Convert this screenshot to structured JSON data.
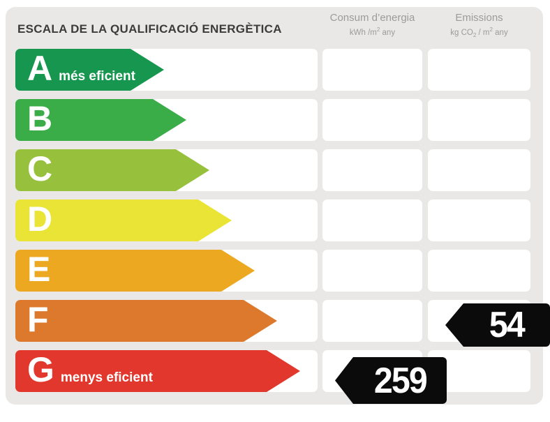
{
  "label": {
    "title": "ESCALA DE LA QUALIFICACIÓ ENERGÈTICA",
    "columns": {
      "consumption": {
        "title": "Consum d’energia",
        "unit": {
          "pre": "kWh /m",
          "sup": "2",
          "post": " any"
        }
      },
      "emissions": {
        "title": "Emissions",
        "unit": {
          "pre": "kg CO",
          "sub": "2",
          "mid": " / m",
          "sup": "2",
          "post": " any"
        }
      }
    },
    "scale": {
      "rows": [
        {
          "letter": "A",
          "label": "més eficient",
          "color": "#17964F"
        },
        {
          "letter": "B",
          "label": "",
          "color": "#3AAD49"
        },
        {
          "letter": "C",
          "label": "",
          "color": "#97C13D"
        },
        {
          "letter": "D",
          "label": "",
          "color": "#EAE436"
        },
        {
          "letter": "E",
          "label": "",
          "color": "#EDA822"
        },
        {
          "letter": "F",
          "label": "",
          "color": "#DC792D"
        },
        {
          "letter": "G",
          "label": "menys eficient",
          "color": "#E2372C"
        }
      ]
    },
    "values": {
      "consumption": {
        "value": "259",
        "row_letter": "G"
      },
      "emissions": {
        "value": "54",
        "row_letter": "F"
      }
    },
    "colors": {
      "panel_bg": "#E9E8E7",
      "tag_bg": "#0B0B0B",
      "title_text": "#3B3B3A",
      "header_text": "#9B9B9B"
    }
  },
  "chart_data": {
    "type": "table",
    "title": "ESCALA DE LA QUALIFICACIÓ ENERGÈTICA",
    "columns": [
      "Consum d'energia (kWh/m2 any)",
      "Emissions (kg CO2/m2 any)"
    ],
    "rating_classes": [
      "A",
      "B",
      "C",
      "D",
      "E",
      "F",
      "G"
    ],
    "class_annotations": {
      "A": "més eficient",
      "G": "menys eficient"
    },
    "class_colors": [
      "#17964F",
      "#3AAD49",
      "#97C13D",
      "#EAE436",
      "#EDA822",
      "#DC792D",
      "#E2372C"
    ],
    "values": {
      "consum_energia_kwh_m2_any": 259,
      "consum_rating_class": "G",
      "emissions_kg_co2_m2_any": 54,
      "emissions_rating_class": "F"
    },
    "legend_position": "none",
    "grid": false
  }
}
